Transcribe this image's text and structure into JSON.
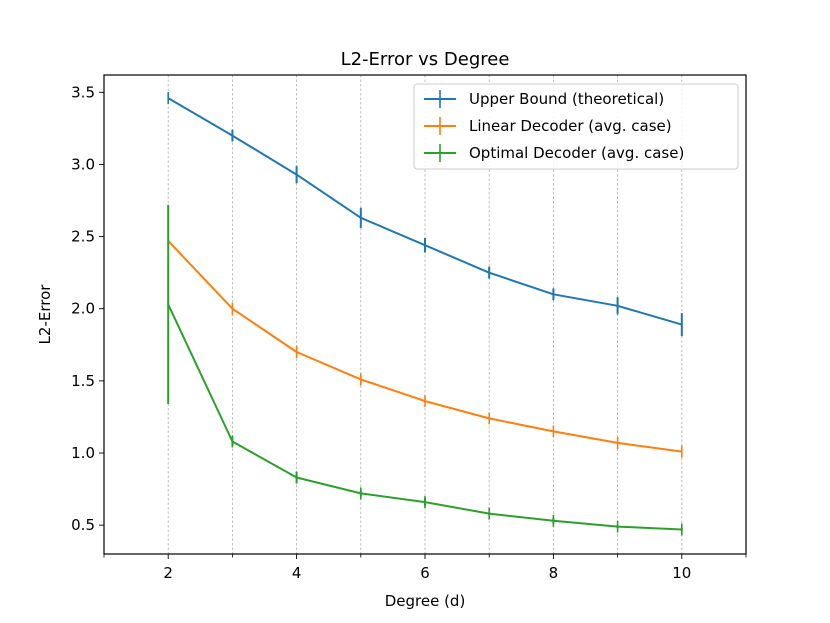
{
  "chart_data": {
    "type": "line",
    "title": "L2-Error vs Degree",
    "xlabel": "Degree (d)",
    "ylabel": "L2-Error",
    "xlim": [
      1,
      11
    ],
    "ylim": [
      0.3,
      3.62
    ],
    "xticks": [
      2,
      4,
      6,
      8,
      10
    ],
    "xticks_minor": [
      1,
      3,
      5,
      7,
      9,
      11
    ],
    "yticks": [
      0.5,
      1.0,
      1.5,
      2.0,
      2.5,
      3.0,
      3.5
    ],
    "ytick_labels": [
      "0.5",
      "1.0",
      "1.5",
      "2.0",
      "2.5",
      "3.0",
      "3.5"
    ],
    "grid": "vertical dashed at x = 2..10",
    "legend_position": "upper right",
    "x": [
      2,
      3,
      4,
      5,
      6,
      7,
      8,
      9,
      10
    ],
    "series": [
      {
        "name": "Upper Bound (theoretical)",
        "color": "#1f77b4",
        "values": [
          3.46,
          3.2,
          2.93,
          2.63,
          2.44,
          2.25,
          2.1,
          2.02,
          1.89
        ],
        "errors": [
          0.0,
          0.04,
          0.06,
          0.07,
          0.05,
          0.04,
          0.04,
          0.06,
          0.08
        ]
      },
      {
        "name": "Linear Decoder (avg. case)",
        "color": "#ff7f0e",
        "values": [
          2.47,
          2.0,
          1.7,
          1.51,
          1.36,
          1.24,
          1.15,
          1.07,
          1.01
        ],
        "errors": [
          0.0,
          0.0,
          0.0,
          0.0,
          0.0,
          0.0,
          0.0,
          0.0,
          0.0
        ]
      },
      {
        "name": "Optimal Decoder (avg. case)",
        "color": "#2ca02c",
        "values": [
          2.03,
          1.08,
          0.83,
          0.72,
          0.66,
          0.58,
          0.53,
          0.49,
          0.47
        ],
        "errors": [
          0.69,
          0.03,
          0.04,
          0.02,
          0.03,
          0.01,
          0.02,
          0.01,
          0.01
        ]
      }
    ]
  }
}
